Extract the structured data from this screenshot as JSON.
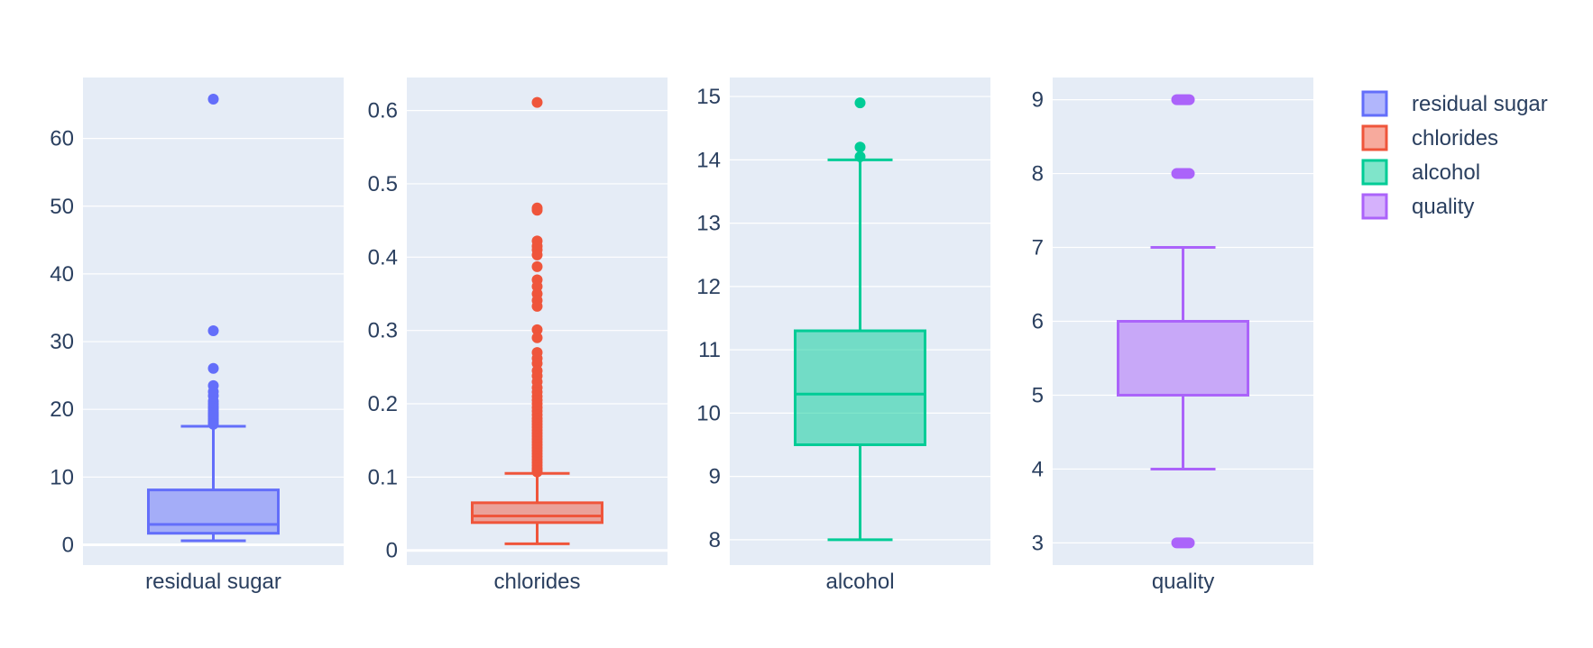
{
  "chart_data": [
    {
      "type": "box",
      "category": "residual sugar",
      "color": "#636efa",
      "fill": "rgba(99,110,250,0.5)",
      "ylim": [
        -3,
        69
      ],
      "yticks": [
        0,
        10,
        20,
        30,
        40,
        50,
        60
      ],
      "tick_labels": [
        "0",
        "10",
        "20",
        "30",
        "40",
        "50",
        "60"
      ],
      "box": {
        "min": 0.6,
        "q1": 1.7,
        "median": 3.0,
        "q3": 8.1,
        "max": 17.5
      },
      "outliers": [
        65.8,
        31.6,
        26.05,
        23.5,
        22.6,
        22.0,
        21.2,
        20.8,
        20.4,
        20.1,
        19.8,
        19.5,
        19.3,
        19.1,
        18.9,
        18.6,
        18.4,
        18.1,
        17.9,
        17.8
      ]
    },
    {
      "type": "box",
      "category": "chlorides",
      "color": "#ef553b",
      "fill": "rgba(239,85,59,0.5)",
      "ylim": [
        -0.02,
        0.645
      ],
      "yticks": [
        0,
        0.1,
        0.2,
        0.3,
        0.4,
        0.5,
        0.6
      ],
      "tick_labels": [
        "0",
        "0.1",
        "0.2",
        "0.3",
        "0.4",
        "0.5",
        "0.6"
      ],
      "box": {
        "min": 0.009,
        "q1": 0.038,
        "median": 0.047,
        "q3": 0.065,
        "max": 0.105
      },
      "outliers": [
        0.611,
        0.467,
        0.464,
        0.422,
        0.415,
        0.41,
        0.403,
        0.387,
        0.369,
        0.36,
        0.35,
        0.341,
        0.333,
        0.301,
        0.29,
        0.27,
        0.262,
        0.255,
        0.245,
        0.238,
        0.23,
        0.222,
        0.216,
        0.21,
        0.205,
        0.2,
        0.195,
        0.19,
        0.185,
        0.18,
        0.176,
        0.172,
        0.168,
        0.164,
        0.16,
        0.156,
        0.152,
        0.148,
        0.144,
        0.14,
        0.136,
        0.132,
        0.128,
        0.124,
        0.12,
        0.116,
        0.112,
        0.109,
        0.107
      ]
    },
    {
      "type": "box",
      "category": "alcohol",
      "color": "#00cc96",
      "fill": "rgba(0,204,150,0.5)",
      "ylim": [
        7.6,
        15.3
      ],
      "yticks": [
        8,
        9,
        10,
        11,
        12,
        13,
        14,
        15
      ],
      "tick_labels": [
        "8",
        "9",
        "10",
        "11",
        "12",
        "13",
        "14",
        "15"
      ],
      "box": {
        "min": 8.0,
        "q1": 9.5,
        "median": 10.3,
        "q3": 11.3,
        "max": 14.0
      },
      "outliers": [
        14.9,
        14.2,
        14.05
      ]
    },
    {
      "type": "box",
      "category": "quality",
      "color": "#ab63fa",
      "fill": "rgba(171,99,250,0.5)",
      "ylim": [
        2.7,
        9.3
      ],
      "yticks": [
        3,
        4,
        5,
        6,
        7,
        8,
        9
      ],
      "tick_labels": [
        "3",
        "4",
        "5",
        "6",
        "7",
        "8",
        "9"
      ],
      "box": {
        "min": 4,
        "q1": 5,
        "median": 6,
        "q3": 6,
        "max": 7
      },
      "outliers": [
        9,
        8,
        3
      ]
    }
  ],
  "legend": {
    "placement": "top-right",
    "items": [
      {
        "label": "residual sugar",
        "color": "#636efa",
        "fill": "rgba(99,110,250,0.5)"
      },
      {
        "label": "chlorides",
        "color": "#ef553b",
        "fill": "rgba(239,85,59,0.5)"
      },
      {
        "label": "alcohol",
        "color": "#00cc96",
        "fill": "rgba(0,204,150,0.5)"
      },
      {
        "label": "quality",
        "color": "#ab63fa",
        "fill": "rgba(171,99,250,0.5)"
      }
    ]
  },
  "style": {
    "plot_bg": "#e5ecf6",
    "grid_color": "#ffffff",
    "text_color": "#2a3f5f"
  }
}
